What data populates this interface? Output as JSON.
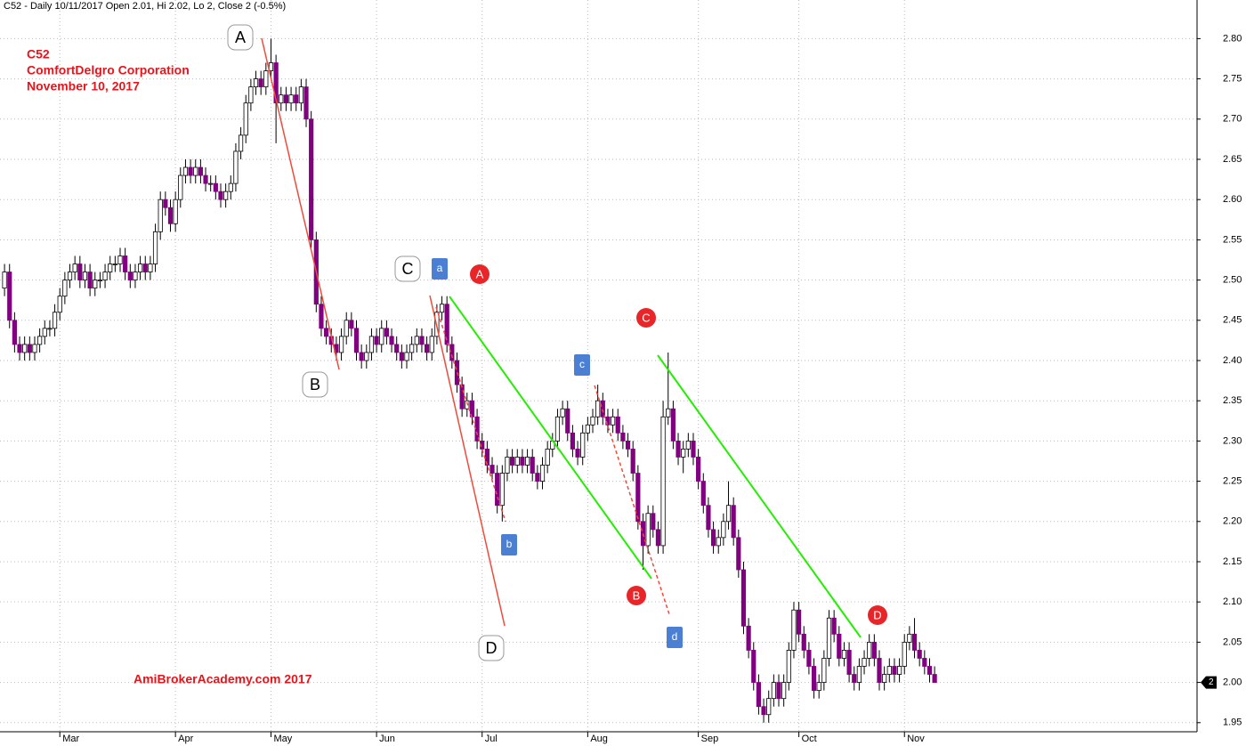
{
  "chart_data": {
    "type": "candlestick",
    "title": "C52 - Daily 10/11/2017 Open 2.01, Hi 2.02, Lo 2, Close 2 (-0.5%)",
    "annotations": {
      "symbol": "C52",
      "name": "ComfortDelgro Corporation",
      "date": "November 10, 2017",
      "credit": "AmiBrokerAcademy.com 2017"
    },
    "last_price_label": "2",
    "wave_labels": [
      {
        "label": "A",
        "style": "box"
      },
      {
        "label": "B",
        "style": "box"
      },
      {
        "label": "C",
        "style": "box"
      },
      {
        "label": "D",
        "style": "box"
      },
      {
        "label": "a",
        "style": "square"
      },
      {
        "label": "b",
        "style": "square"
      },
      {
        "label": "c",
        "style": "square"
      },
      {
        "label": "d",
        "style": "square"
      },
      {
        "label": "A",
        "style": "circle"
      },
      {
        "label": "B",
        "style": "circle"
      },
      {
        "label": "C",
        "style": "circle"
      },
      {
        "label": "D",
        "style": "circle"
      }
    ],
    "up_color": "#ffffff",
    "down_color": "#800080",
    "open": [
      2.49,
      2.51,
      2.45,
      2.42,
      2.41,
      2.42,
      2.41,
      2.42,
      2.43,
      2.44,
      2.44,
      2.46,
      2.48,
      2.5,
      2.51,
      2.52,
      2.5,
      2.51,
      2.49,
      2.5,
      2.5,
      2.51,
      2.52,
      2.52,
      2.53,
      2.51,
      2.5,
      2.51,
      2.52,
      2.51,
      2.52,
      2.56,
      2.6,
      2.59,
      2.57,
      2.6,
      2.63,
      2.64,
      2.63,
      2.64,
      2.63,
      2.62,
      2.62,
      2.61,
      2.6,
      2.61,
      2.62,
      2.66,
      2.68,
      2.72,
      2.74,
      2.75,
      2.74,
      2.76,
      2.77,
      2.72,
      2.73,
      2.72,
      2.73,
      2.72,
      2.74,
      2.7,
      2.55,
      2.47,
      2.44,
      2.43,
      2.42,
      2.41,
      2.43,
      2.45,
      2.44,
      2.41,
      2.4,
      2.41,
      2.43,
      2.42,
      2.44,
      2.43,
      2.42,
      2.41,
      2.4,
      2.41,
      2.42,
      2.43,
      2.42,
      2.41,
      2.43,
      2.46,
      2.47,
      2.42,
      2.4,
      2.37,
      2.34,
      2.35,
      2.33,
      2.3,
      2.29,
      2.27,
      2.26,
      2.22,
      2.26,
      2.28,
      2.27,
      2.28,
      2.27,
      2.28,
      2.26,
      2.25,
      2.27,
      2.29,
      2.3,
      2.33,
      2.34,
      2.31,
      2.29,
      2.28,
      2.31,
      2.32,
      2.33,
      2.35,
      2.33,
      2.32,
      2.33,
      2.31,
      2.3,
      2.29,
      2.26,
      2.2,
      2.17,
      2.21,
      2.19,
      2.17,
      2.33,
      2.34,
      2.3,
      2.28,
      2.29,
      2.3,
      2.28,
      2.25,
      2.22,
      2.19,
      2.17,
      2.18,
      2.2,
      2.22,
      2.18,
      2.14,
      2.07,
      2.04,
      2.0,
      1.97,
      1.96,
      1.98,
      2.0,
      1.98,
      2.0,
      2.04,
      2.09,
      2.06,
      2.04,
      2.02,
      1.99,
      2.0,
      2.03,
      2.08,
      2.06,
      2.03,
      2.04,
      2.01,
      2.0,
      2.02,
      2.03,
      2.05,
      2.03,
      2.0,
      2.01,
      2.02,
      2.01,
      2.02,
      2.05,
      2.06,
      2.04,
      2.03,
      2.02,
      2.01
    ],
    "high": [
      2.52,
      2.52,
      2.46,
      2.43,
      2.43,
      2.43,
      2.43,
      2.44,
      2.45,
      2.45,
      2.47,
      2.49,
      2.51,
      2.52,
      2.53,
      2.53,
      2.52,
      2.52,
      2.51,
      2.51,
      2.52,
      2.53,
      2.53,
      2.54,
      2.54,
      2.52,
      2.52,
      2.53,
      2.53,
      2.53,
      2.57,
      2.61,
      2.61,
      2.6,
      2.61,
      2.64,
      2.65,
      2.65,
      2.65,
      2.65,
      2.64,
      2.63,
      2.63,
      2.62,
      2.62,
      2.63,
      2.67,
      2.69,
      2.73,
      2.75,
      2.76,
      2.76,
      2.77,
      2.8,
      2.78,
      2.74,
      2.74,
      2.74,
      2.74,
      2.75,
      2.75,
      2.71,
      2.56,
      2.48,
      2.45,
      2.44,
      2.43,
      2.44,
      2.46,
      2.46,
      2.45,
      2.42,
      2.42,
      2.44,
      2.44,
      2.45,
      2.45,
      2.44,
      2.43,
      2.42,
      2.42,
      2.43,
      2.44,
      2.44,
      2.43,
      2.44,
      2.47,
      2.48,
      2.48,
      2.43,
      2.41,
      2.38,
      2.36,
      2.36,
      2.34,
      2.31,
      2.3,
      2.28,
      2.27,
      2.27,
      2.29,
      2.29,
      2.29,
      2.29,
      2.29,
      2.29,
      2.27,
      2.28,
      2.3,
      2.31,
      2.34,
      2.35,
      2.35,
      2.32,
      2.3,
      2.32,
      2.33,
      2.34,
      2.37,
      2.36,
      2.34,
      2.34,
      2.34,
      2.32,
      2.31,
      2.3,
      2.27,
      2.21,
      2.22,
      2.22,
      2.2,
      2.35,
      2.41,
      2.35,
      2.31,
      2.3,
      2.31,
      2.31,
      2.29,
      2.26,
      2.23,
      2.2,
      2.19,
      2.21,
      2.25,
      2.23,
      2.19,
      2.15,
      2.08,
      2.05,
      2.01,
      1.98,
      1.99,
      2.01,
      2.01,
      2.01,
      2.05,
      2.1,
      2.1,
      2.07,
      2.05,
      2.03,
      2.01,
      2.04,
      2.09,
      2.09,
      2.07,
      2.05,
      2.05,
      2.02,
      2.03,
      2.04,
      2.06,
      2.06,
      2.04,
      2.02,
      2.03,
      2.03,
      2.03,
      2.06,
      2.07,
      2.08,
      2.05,
      2.04,
      2.03,
      2.02
    ],
    "low": [
      2.48,
      2.44,
      2.41,
      2.4,
      2.4,
      2.4,
      2.4,
      2.41,
      2.42,
      2.43,
      2.43,
      2.45,
      2.47,
      2.49,
      2.5,
      2.49,
      2.49,
      2.48,
      2.48,
      2.49,
      2.49,
      2.5,
      2.51,
      2.51,
      2.5,
      2.49,
      2.49,
      2.5,
      2.5,
      2.5,
      2.51,
      2.55,
      2.58,
      2.56,
      2.56,
      2.59,
      2.62,
      2.62,
      2.62,
      2.62,
      2.61,
      2.61,
      2.6,
      2.59,
      2.59,
      2.6,
      2.61,
      2.65,
      2.67,
      2.71,
      2.73,
      2.73,
      2.73,
      2.75,
      2.67,
      2.71,
      2.71,
      2.71,
      2.71,
      2.71,
      2.69,
      2.54,
      2.46,
      2.43,
      2.42,
      2.41,
      2.4,
      2.4,
      2.42,
      2.43,
      2.4,
      2.39,
      2.39,
      2.4,
      2.41,
      2.41,
      2.42,
      2.41,
      2.4,
      2.39,
      2.39,
      2.4,
      2.41,
      2.41,
      2.4,
      2.4,
      2.42,
      2.45,
      2.41,
      2.39,
      2.36,
      2.33,
      2.33,
      2.32,
      2.29,
      2.28,
      2.26,
      2.25,
      2.21,
      2.2,
      2.25,
      2.26,
      2.26,
      2.26,
      2.26,
      2.25,
      2.24,
      2.24,
      2.26,
      2.28,
      2.29,
      2.32,
      2.3,
      2.28,
      2.27,
      2.27,
      2.3,
      2.31,
      2.32,
      2.32,
      2.31,
      2.31,
      2.3,
      2.29,
      2.28,
      2.25,
      2.19,
      2.14,
      2.16,
      2.18,
      2.16,
      2.16,
      2.32,
      2.29,
      2.27,
      2.26,
      2.28,
      2.27,
      2.24,
      2.21,
      2.18,
      2.16,
      2.16,
      2.17,
      2.19,
      2.17,
      2.13,
      2.06,
      2.03,
      1.99,
      1.96,
      1.95,
      1.95,
      1.97,
      1.97,
      1.97,
      1.99,
      2.03,
      2.05,
      2.03,
      2.01,
      1.98,
      1.98,
      1.99,
      2.02,
      2.05,
      2.02,
      2.02,
      2.0,
      1.99,
      1.99,
      2.01,
      2.02,
      2.02,
      1.99,
      1.99,
      2.0,
      2.0,
      2.0,
      2.01,
      2.04,
      2.03,
      2.02,
      2.01,
      2.0,
      2.0
    ],
    "close": [
      2.51,
      2.45,
      2.42,
      2.41,
      2.42,
      2.41,
      2.42,
      2.43,
      2.44,
      2.44,
      2.46,
      2.48,
      2.5,
      2.51,
      2.52,
      2.5,
      2.51,
      2.49,
      2.5,
      2.5,
      2.51,
      2.52,
      2.52,
      2.53,
      2.51,
      2.5,
      2.51,
      2.52,
      2.51,
      2.52,
      2.56,
      2.6,
      2.59,
      2.57,
      2.6,
      2.63,
      2.64,
      2.63,
      2.64,
      2.63,
      2.62,
      2.62,
      2.61,
      2.6,
      2.61,
      2.62,
      2.66,
      2.68,
      2.72,
      2.74,
      2.75,
      2.74,
      2.76,
      2.77,
      2.72,
      2.73,
      2.72,
      2.73,
      2.72,
      2.74,
      2.7,
      2.55,
      2.47,
      2.44,
      2.43,
      2.42,
      2.41,
      2.43,
      2.45,
      2.44,
      2.41,
      2.4,
      2.41,
      2.43,
      2.42,
      2.44,
      2.43,
      2.42,
      2.41,
      2.4,
      2.41,
      2.42,
      2.43,
      2.42,
      2.41,
      2.43,
      2.46,
      2.47,
      2.42,
      2.4,
      2.37,
      2.34,
      2.35,
      2.33,
      2.3,
      2.29,
      2.27,
      2.26,
      2.22,
      2.26,
      2.28,
      2.27,
      2.28,
      2.27,
      2.28,
      2.26,
      2.25,
      2.27,
      2.29,
      2.3,
      2.33,
      2.34,
      2.31,
      2.29,
      2.28,
      2.31,
      2.32,
      2.33,
      2.35,
      2.33,
      2.32,
      2.33,
      2.31,
      2.3,
      2.29,
      2.26,
      2.2,
      2.17,
      2.21,
      2.19,
      2.17,
      2.33,
      2.34,
      2.3,
      2.28,
      2.29,
      2.3,
      2.28,
      2.25,
      2.22,
      2.19,
      2.17,
      2.18,
      2.2,
      2.22,
      2.18,
      2.14,
      2.07,
      2.04,
      2.0,
      1.97,
      1.96,
      1.98,
      2.0,
      1.98,
      2.0,
      2.04,
      2.09,
      2.06,
      2.04,
      2.02,
      1.99,
      2.0,
      2.03,
      2.08,
      2.06,
      2.03,
      2.04,
      2.01,
      2.0,
      2.02,
      2.03,
      2.05,
      2.03,
      2.0,
      2.01,
      2.02,
      2.01,
      2.02,
      2.05,
      2.06,
      2.04,
      2.03,
      2.02,
      2.01,
      2.0
    ],
    "xlim": [
      -0.9,
      237.2
    ],
    "xticks": [
      {
        "value": 11,
        "label": "Mar"
      },
      {
        "value": 34,
        "label": "Apr"
      },
      {
        "value": 53,
        "label": "May"
      },
      {
        "value": 74,
        "label": "Jun"
      },
      {
        "value": 95,
        "label": "Jul"
      },
      {
        "value": 116,
        "label": "Aug"
      },
      {
        "value": 138,
        "label": "Sep"
      },
      {
        "value": 158,
        "label": "Oct"
      },
      {
        "value": 179,
        "label": "Nov"
      }
    ],
    "ylim": [
      1.921,
      2.848
    ],
    "yticks": [
      1.95,
      {
        "value": 2.0,
        "label": "2.00"
      },
      2.05,
      {
        "value": 2.1,
        "label": "2.10"
      },
      2.15,
      {
        "value": 2.2,
        "label": "2.20"
      },
      2.25,
      {
        "value": 2.3,
        "label": "2.30"
      },
      2.35,
      {
        "value": 2.4,
        "label": "2.40"
      },
      2.45,
      {
        "value": 2.5,
        "label": "2.50"
      },
      2.55,
      {
        "value": 2.6,
        "label": "2.60"
      },
      2.65,
      {
        "value": 2.7,
        "label": "2.70"
      },
      2.75,
      {
        "value": 2.8,
        "label": "2.80"
      }
    ],
    "grid": true
  }
}
